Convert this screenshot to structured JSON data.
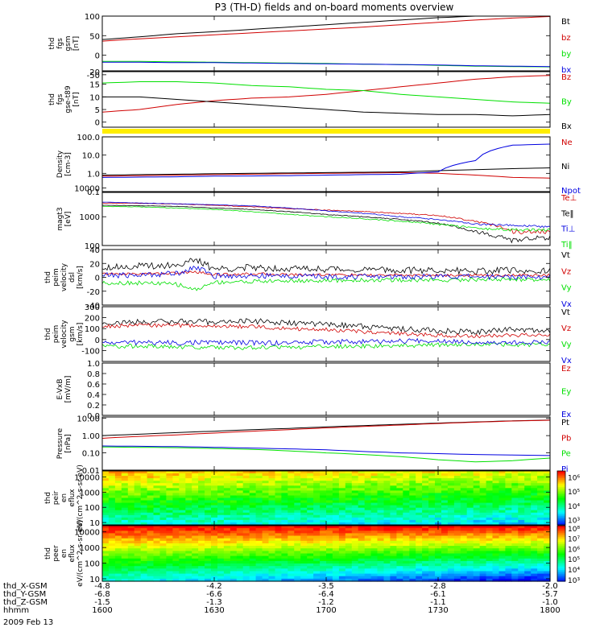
{
  "title": "P3 (TH-D) fields and on-board moments overview",
  "date": "2009 Feb 13",
  "colors": {
    "black": "#000000",
    "red": "#d00000",
    "green": "#00e000",
    "blue": "#0000e0",
    "yellow": "#ffee00"
  },
  "chart_data": [
    {
      "type": "line",
      "xlabel": "",
      "ylabel": "thd fgs gsm [nT]",
      "ylim": [
        -40,
        100
      ],
      "yticks": [
        100,
        50,
        0,
        -50
      ],
      "series": [
        {
          "name": "Bt",
          "color": "black",
          "x": [
            1600,
            1610,
            1620,
            1630,
            1640,
            1650,
            1700,
            1710,
            1720,
            1730,
            1740,
            1750,
            1800
          ],
          "y": [
            40,
            47,
            55,
            60,
            66,
            72,
            78,
            84,
            90,
            96,
            100,
            103,
            106
          ]
        },
        {
          "name": "bz",
          "color": "red",
          "x": [
            1600,
            1610,
            1620,
            1630,
            1640,
            1650,
            1700,
            1710,
            1720,
            1730,
            1740,
            1750,
            1800
          ],
          "y": [
            36,
            42,
            47,
            52,
            57,
            62,
            67,
            72,
            78,
            84,
            90,
            95,
            99
          ]
        },
        {
          "name": "by",
          "color": "green",
          "x": [
            1600,
            1610,
            1620,
            1630,
            1640,
            1650,
            1700,
            1710,
            1720,
            1730,
            1740,
            1750,
            1800
          ],
          "y": [
            -16,
            -16,
            -17,
            -18,
            -19,
            -20,
            -21,
            -23,
            -24,
            -26,
            -28,
            -29,
            -30
          ]
        },
        {
          "name": "bx",
          "color": "blue",
          "x": [
            1600,
            1610,
            1620,
            1630,
            1640,
            1650,
            1700,
            1710,
            1720,
            1730,
            1740,
            1750,
            1800
          ],
          "y": [
            -18,
            -18,
            -19,
            -19,
            -20,
            -21,
            -22,
            -23,
            -24,
            -25,
            -27,
            -28,
            -29
          ]
        }
      ]
    },
    {
      "type": "line",
      "xlabel": "",
      "ylabel": "thd fgs gse-t89 [nT]",
      "ylim": [
        -2,
        20
      ],
      "yticks": [
        20,
        15,
        10,
        5,
        0
      ],
      "series": [
        {
          "name": "Bz",
          "color": "red",
          "x": [
            1600,
            1610,
            1620,
            1630,
            1640,
            1650,
            1700,
            1710,
            1720,
            1730,
            1740,
            1750,
            1800
          ],
          "y": [
            4,
            5,
            7,
            8.5,
            9.5,
            10,
            11,
            12.5,
            14,
            15.5,
            17,
            18,
            18.5
          ]
        },
        {
          "name": "By",
          "color": "green",
          "x": [
            1600,
            1610,
            1620,
            1630,
            1640,
            1650,
            1700,
            1710,
            1720,
            1730,
            1740,
            1750,
            1800
          ],
          "y": [
            15.5,
            16,
            16,
            15.5,
            14.5,
            14,
            13,
            12.5,
            11,
            10,
            9,
            8,
            7.5
          ]
        },
        {
          "name": "Bx",
          "color": "black",
          "x": [
            1600,
            1610,
            1620,
            1630,
            1640,
            1650,
            1700,
            1710,
            1720,
            1730,
            1740,
            1750,
            1800
          ],
          "y": [
            10,
            10,
            9,
            8,
            7,
            6,
            5,
            4,
            3.5,
            3,
            3,
            2.5,
            3
          ]
        }
      ]
    },
    {
      "type": "line",
      "xlabel": "",
      "ylabel": "Density [cm-3]",
      "yscale": "log",
      "ylim": [
        0.1,
        100
      ],
      "yticks": [
        100.0,
        10.0,
        1.0,
        0.1
      ],
      "series": [
        {
          "name": "Ne",
          "color": "red",
          "x": [
            1600,
            1610,
            1620,
            1630,
            1640,
            1650,
            1700,
            1710,
            1720,
            1730,
            1740,
            1750,
            1800
          ],
          "y": [
            0.7,
            0.75,
            0.8,
            0.85,
            0.9,
            0.95,
            1.0,
            1.05,
            1.1,
            1.0,
            0.8,
            0.6,
            0.55
          ]
        },
        {
          "name": "Ni",
          "color": "black",
          "x": [
            1600,
            1610,
            1620,
            1630,
            1640,
            1650,
            1700,
            1710,
            1720,
            1730,
            1740,
            1750,
            1800
          ],
          "y": [
            0.8,
            0.85,
            0.9,
            0.95,
            1.0,
            1.05,
            1.1,
            1.15,
            1.2,
            1.4,
            1.6,
            1.8,
            2.0
          ]
        },
        {
          "name": "Npot",
          "color": "blue",
          "x": [
            1600,
            1610,
            1620,
            1630,
            1640,
            1650,
            1700,
            1710,
            1720,
            1730,
            1740,
            1745,
            1750,
            1800
          ],
          "y": [
            0.6,
            0.62,
            0.65,
            0.7,
            0.72,
            0.75,
            0.8,
            0.85,
            0.9,
            1.2,
            5,
            20,
            35,
            40
          ]
        }
      ]
    },
    {
      "type": "line",
      "xlabel": "",
      "ylabel": "magt3 [eV]",
      "yscale": "log",
      "ylim": [
        100,
        7000
      ],
      "yticks": [
        10000,
        1000,
        100
      ],
      "series": [
        {
          "name": "Te⊥",
          "color": "red",
          "x": [
            1600,
            1610,
            1620,
            1630,
            1640,
            1650,
            1700,
            1710,
            1720,
            1730,
            1740,
            1750,
            1800
          ],
          "y": [
            3000,
            2900,
            2800,
            2500,
            2200,
            1900,
            1700,
            1500,
            1300,
            1100,
            700,
            300,
            300
          ]
        },
        {
          "name": "Te‖",
          "color": "black",
          "x": [
            1600,
            1610,
            1620,
            1630,
            1640,
            1650,
            1700,
            1710,
            1720,
            1730,
            1740,
            1750,
            1800
          ],
          "y": [
            2500,
            2400,
            2300,
            2000,
            1800,
            1500,
            1200,
            1000,
            800,
            600,
            300,
            150,
            200
          ]
        },
        {
          "name": "Ti⊥",
          "color": "blue",
          "x": [
            1600,
            1610,
            1620,
            1630,
            1640,
            1650,
            1700,
            1710,
            1720,
            1730,
            1740,
            1750,
            1800
          ],
          "y": [
            3200,
            3000,
            2800,
            2600,
            2400,
            2000,
            1600,
            1300,
            1000,
            800,
            550,
            500,
            450
          ]
        },
        {
          "name": "Ti‖",
          "color": "green",
          "x": [
            1600,
            1610,
            1620,
            1630,
            1640,
            1650,
            1700,
            1710,
            1720,
            1730,
            1740,
            1750,
            1800
          ],
          "y": [
            2300,
            2200,
            2000,
            1800,
            1500,
            1200,
            1000,
            850,
            700,
            550,
            400,
            350,
            350
          ]
        }
      ]
    },
    {
      "type": "line",
      "xlabel": "",
      "ylabel": "thd peim velocity dsl [km/s]",
      "ylim": [
        -40,
        40
      ],
      "yticks": [
        40,
        20,
        0,
        -20,
        -40
      ],
      "series": [
        {
          "name": "Vt",
          "color": "black",
          "x": [
            1600,
            1610,
            1620,
            1625,
            1630,
            1640,
            1650,
            1700,
            1710,
            1720,
            1730,
            1740,
            1750,
            1800
          ],
          "y": [
            15,
            16,
            18,
            25,
            12,
            14,
            13,
            12,
            11,
            10,
            10,
            9,
            10,
            9
          ]
        },
        {
          "name": "Vz",
          "color": "red",
          "x": [
            1600,
            1610,
            1620,
            1625,
            1630,
            1640,
            1650,
            1700,
            1710,
            1720,
            1730,
            1740,
            1750,
            1800
          ],
          "y": [
            5,
            5,
            6,
            8,
            4,
            5,
            4,
            4,
            3,
            3,
            3,
            3,
            3,
            3
          ]
        },
        {
          "name": "Vy",
          "color": "green",
          "x": [
            1600,
            1610,
            1620,
            1625,
            1630,
            1640,
            1650,
            1700,
            1710,
            1720,
            1730,
            1740,
            1750,
            1800
          ],
          "y": [
            -8,
            -8,
            -10,
            -18,
            -7,
            -6,
            -5,
            -5,
            -4,
            -4,
            -4,
            -3,
            -3,
            -3
          ]
        },
        {
          "name": "Vx",
          "color": "blue",
          "x": [
            1600,
            1610,
            1620,
            1625,
            1630,
            1640,
            1650,
            1700,
            1710,
            1720,
            1730,
            1740,
            1750,
            1800
          ],
          "y": [
            3,
            3,
            6,
            15,
            2,
            2,
            2,
            1,
            1,
            1,
            1,
            1,
            1,
            1
          ]
        }
      ]
    },
    {
      "type": "line",
      "xlabel": "",
      "ylabel": "thd peim velocity gsm [km/s]",
      "ylim": [
        -200,
        300
      ],
      "yticks": [
        300,
        200,
        100,
        0,
        -100
      ],
      "series": [
        {
          "name": "Vt",
          "color": "black",
          "x": [
            1600,
            1610,
            1620,
            1630,
            1640,
            1650,
            1700,
            1710,
            1720,
            1730,
            1740,
            1750,
            1800
          ],
          "y": [
            150,
            160,
            165,
            160,
            170,
            150,
            140,
            120,
            100,
            80,
            70,
            90,
            80
          ]
        },
        {
          "name": "Vz",
          "color": "red",
          "x": [
            1600,
            1610,
            1620,
            1630,
            1640,
            1650,
            1700,
            1710,
            1720,
            1730,
            1740,
            1750,
            1800
          ],
          "y": [
            120,
            130,
            130,
            120,
            120,
            100,
            90,
            70,
            55,
            40,
            30,
            40,
            40
          ]
        },
        {
          "name": "Vy",
          "color": "green",
          "x": [
            1600,
            1610,
            1620,
            1630,
            1640,
            1650,
            1700,
            1710,
            1720,
            1730,
            1740,
            1750,
            1800
          ],
          "y": [
            -60,
            -60,
            -70,
            -70,
            -75,
            -70,
            -65,
            -60,
            -55,
            -50,
            -45,
            -50,
            -40
          ]
        },
        {
          "name": "Vx",
          "color": "blue",
          "x": [
            1600,
            1610,
            1620,
            1630,
            1640,
            1650,
            1700,
            1710,
            1720,
            1730,
            1740,
            1750,
            1800
          ],
          "y": [
            -30,
            -25,
            -30,
            -25,
            -30,
            -30,
            -20,
            -20,
            -15,
            -10,
            -20,
            -30,
            -20
          ]
        }
      ]
    },
    {
      "type": "line",
      "xlabel": "",
      "ylabel": "E-VxB [mV/m]",
      "ylim": [
        0,
        1
      ],
      "yticks": [
        1.0,
        0.8,
        0.6,
        0.4,
        0.2,
        0.0
      ],
      "series": [
        {
          "name": "Ez",
          "color": "red",
          "x": [],
          "y": []
        },
        {
          "name": "Ey",
          "color": "green",
          "x": [],
          "y": []
        },
        {
          "name": "Ex",
          "color": "blue",
          "x": [],
          "y": []
        }
      ]
    },
    {
      "type": "line",
      "xlabel": "",
      "ylabel": "Pressure [nPa]",
      "yscale": "log",
      "ylim": [
        0.01,
        12
      ],
      "yticks": [
        10.0,
        1.0,
        0.1,
        0.01
      ],
      "series": [
        {
          "name": "Pt",
          "color": "black",
          "x": [
            1600,
            1610,
            1620,
            1630,
            1640,
            1650,
            1700,
            1710,
            1720,
            1730,
            1740,
            1750,
            1800
          ],
          "y": [
            1.0,
            1.2,
            1.5,
            1.8,
            2.2,
            2.6,
            3.2,
            3.8,
            4.5,
            5.3,
            6.2,
            7.2,
            8.0
          ]
        },
        {
          "name": "Pb",
          "color": "red",
          "x": [
            1600,
            1610,
            1620,
            1630,
            1640,
            1650,
            1700,
            1710,
            1720,
            1730,
            1740,
            1750,
            1800
          ],
          "y": [
            0.7,
            0.9,
            1.1,
            1.4,
            1.8,
            2.2,
            2.8,
            3.4,
            4.1,
            5.0,
            6.0,
            7.0,
            7.8
          ]
        },
        {
          "name": "Pe",
          "color": "green",
          "x": [
            1600,
            1610,
            1620,
            1630,
            1640,
            1650,
            1700,
            1710,
            1720,
            1730,
            1740,
            1750,
            1800
          ],
          "y": [
            0.22,
            0.21,
            0.2,
            0.18,
            0.16,
            0.13,
            0.1,
            0.08,
            0.06,
            0.04,
            0.03,
            0.035,
            0.05
          ]
        },
        {
          "name": "Pi",
          "color": "blue",
          "x": [
            1600,
            1610,
            1620,
            1630,
            1640,
            1650,
            1700,
            1710,
            1720,
            1730,
            1740,
            1750,
            1800
          ],
          "y": [
            0.25,
            0.24,
            0.23,
            0.21,
            0.19,
            0.17,
            0.15,
            0.12,
            0.1,
            0.09,
            0.08,
            0.075,
            0.07
          ]
        }
      ]
    },
    {
      "type": "heatmap",
      "xlabel": "",
      "ylabel": "thd peir en eflux eV/(cm^2-s-sr-eV)",
      "yscale": "log",
      "ylim": [
        7,
        25000
      ],
      "yticks": [
        10000,
        1000,
        100,
        10
      ],
      "colorbar": {
        "scale": "log",
        "range": [
          500,
          3000000
        ],
        "tick_labels": [
          "10⁶",
          "10⁵",
          "10⁴",
          "10³"
        ],
        "tick_values": [
          1000000,
          100000,
          10000,
          1000
        ]
      }
    },
    {
      "type": "heatmap",
      "xlabel": "",
      "ylabel": "thd peer en eflux eV/(cm^2-s-sr-eV)",
      "yscale": "log",
      "ylim": [
        7,
        25000
      ],
      "yticks": [
        10000,
        1000,
        100,
        10
      ],
      "colorbar": {
        "scale": "log",
        "range": [
          800,
          200000000
        ],
        "tick_labels": [
          "10⁸",
          "10⁷",
          "10⁶",
          "10⁵",
          "10⁴",
          "10³"
        ],
        "tick_values": [
          100000000,
          10000000,
          1000000,
          100000,
          10000,
          1000
        ]
      }
    }
  ],
  "axis_table": {
    "rows": [
      {
        "label": "thd_X-GSM",
        "values": [
          "-4.8",
          "-4.2",
          "-3.5",
          "-2.8",
          "-2.0"
        ]
      },
      {
        "label": "thd_Y-GSM",
        "values": [
          "-6.8",
          "-6.6",
          "-6.4",
          "-6.1",
          "-5.7"
        ]
      },
      {
        "label": "thd_Z-GSM",
        "values": [
          "-1.5",
          "-1.3",
          "-1.2",
          "-1.1",
          "-1.0"
        ]
      },
      {
        "label": "hhmm",
        "values": [
          "1600",
          "1630",
          "1700",
          "1730",
          "1800"
        ]
      }
    ]
  }
}
